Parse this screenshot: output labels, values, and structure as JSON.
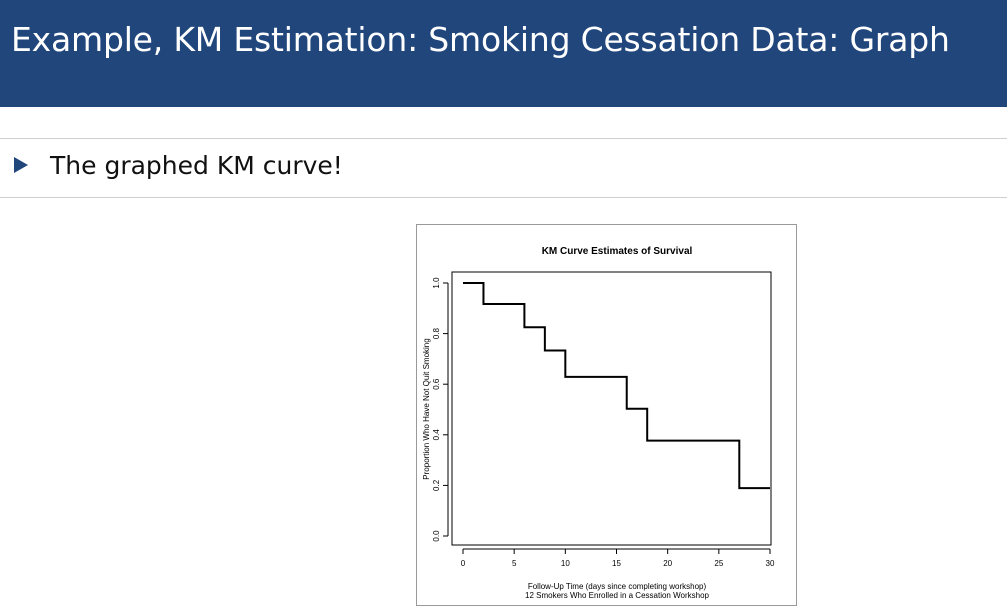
{
  "slide": {
    "title": "Example, KM Estimation: Smoking Cessation Data: Graph",
    "bullet": "The graphed KM curve!"
  },
  "colors": {
    "header_bg": "#21467c",
    "header_text": "#ffffff",
    "bullet_marker": "#21467c",
    "curve": "#000000"
  },
  "chart_data": {
    "type": "line",
    "step": true,
    "title": "KM Curve Estimates of  Survival",
    "xlabel": "Follow-Up Time (days since completing workshop)",
    "xlabel_line2": "12 Smokers Who Enrolled in a Cessation Workshop",
    "ylabel": "Proportion Who Have Not Quit Smoking",
    "xlim": [
      0,
      30
    ],
    "ylim": [
      0,
      1
    ],
    "xticks": [
      "0",
      "5",
      "10",
      "15",
      "20",
      "25",
      "30"
    ],
    "yticks": [
      "0.0",
      "0.2",
      "0.4",
      "0.6",
      "0.8",
      "1.0"
    ],
    "grid": false,
    "legend": "none",
    "series": [
      {
        "x": [
          0,
          2,
          6,
          8,
          10,
          16,
          18,
          27,
          30
        ],
        "y": [
          1.0,
          0.917,
          0.825,
          0.733,
          0.629,
          0.503,
          0.377,
          0.189,
          0.189
        ]
      }
    ]
  }
}
